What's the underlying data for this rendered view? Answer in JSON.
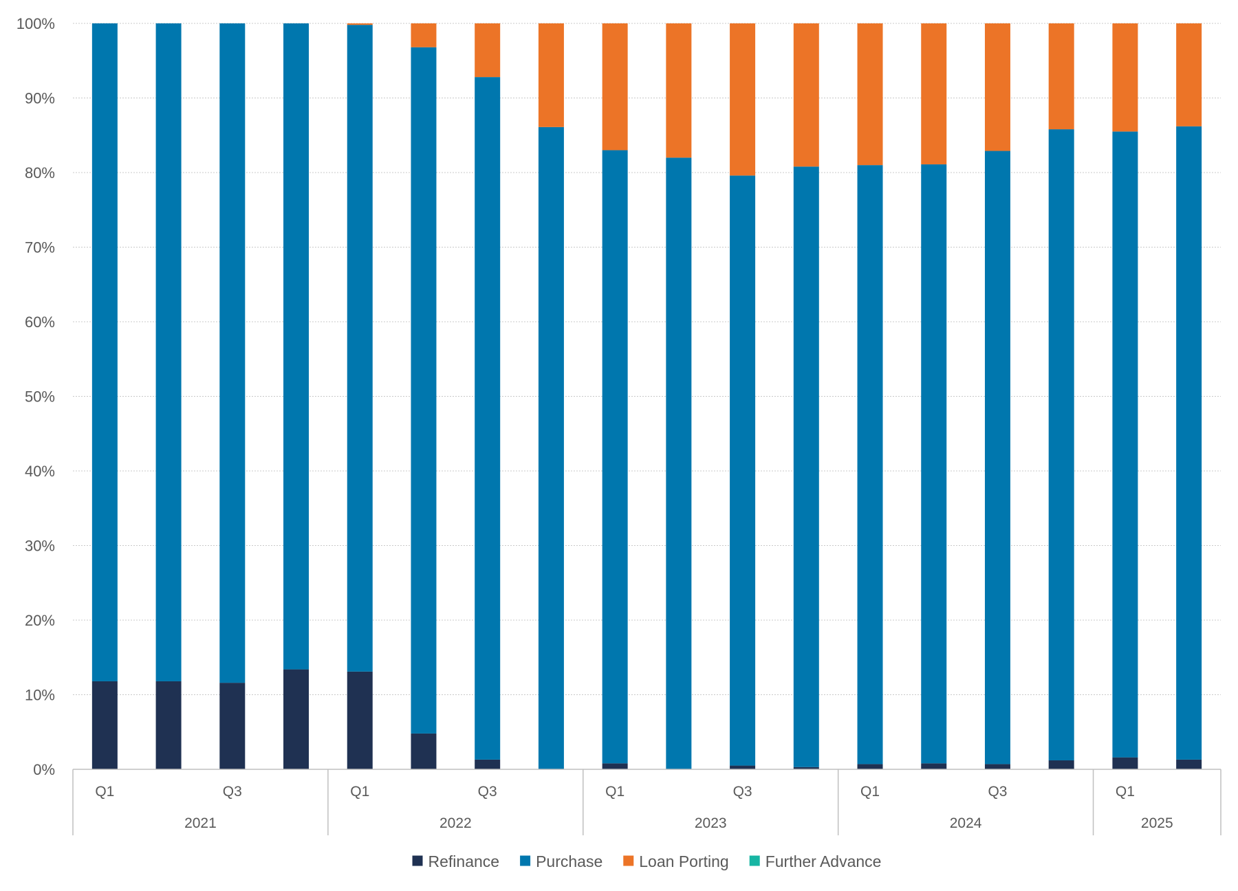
{
  "chart_data": {
    "type": "bar",
    "stacked": true,
    "percent_stacked": true,
    "title": "",
    "xlabel": "",
    "ylabel": "",
    "ylim": [
      0,
      100
    ],
    "y_ticks": [
      "0%",
      "10%",
      "20%",
      "30%",
      "40%",
      "50%",
      "60%",
      "70%",
      "80%",
      "90%",
      "100%"
    ],
    "grid": true,
    "legend_position": "bottom",
    "categories": [
      "2021 Q1",
      "2021 Q2",
      "2021 Q3",
      "2021 Q4",
      "2022 Q1",
      "2022 Q2",
      "2022 Q3",
      "2022 Q4",
      "2023 Q1",
      "2023 Q2",
      "2023 Q3",
      "2023 Q4",
      "2024 Q1",
      "2024 Q2",
      "2024 Q3",
      "2024 Q4",
      "2025 Q1",
      "2025 Q2"
    ],
    "quarter_labels": [
      "Q1",
      "",
      "Q3",
      "",
      "Q1",
      "",
      "Q3",
      "",
      "Q1",
      "",
      "Q3",
      "",
      "Q1",
      "",
      "Q3",
      "",
      "Q1",
      ""
    ],
    "year_groups": [
      {
        "label": "2021",
        "count": 4
      },
      {
        "label": "2022",
        "count": 4
      },
      {
        "label": "2023",
        "count": 4
      },
      {
        "label": "2024",
        "count": 4
      },
      {
        "label": "2025",
        "count": 2
      }
    ],
    "series": [
      {
        "name": "Refinance",
        "color": "#1f3152",
        "values": [
          11.8,
          11.8,
          11.6,
          13.4,
          13.1,
          4.8,
          1.3,
          0.0,
          0.8,
          0.0,
          0.5,
          0.3,
          0.7,
          0.8,
          0.7,
          1.2,
          1.6,
          1.3
        ]
      },
      {
        "name": "Purchase",
        "color": "#0077ae",
        "values": [
          88.2,
          88.2,
          88.4,
          86.6,
          86.7,
          92.0,
          91.5,
          86.1,
          82.2,
          82.0,
          79.1,
          80.5,
          80.3,
          80.3,
          82.2,
          84.6,
          83.9,
          84.9
        ]
      },
      {
        "name": "Loan Porting",
        "color": "#ec7427",
        "values": [
          0.0,
          0.0,
          0.0,
          0.0,
          0.2,
          3.2,
          7.2,
          13.9,
          17.0,
          18.0,
          20.4,
          19.2,
          19.0,
          18.9,
          17.1,
          14.2,
          14.5,
          13.8
        ]
      },
      {
        "name": "Further Advance",
        "color": "#17b5a3",
        "values": [
          0,
          0,
          0,
          0,
          0,
          0,
          0,
          0,
          0,
          0,
          0,
          0,
          0,
          0,
          0,
          0,
          0,
          0
        ]
      }
    ]
  }
}
